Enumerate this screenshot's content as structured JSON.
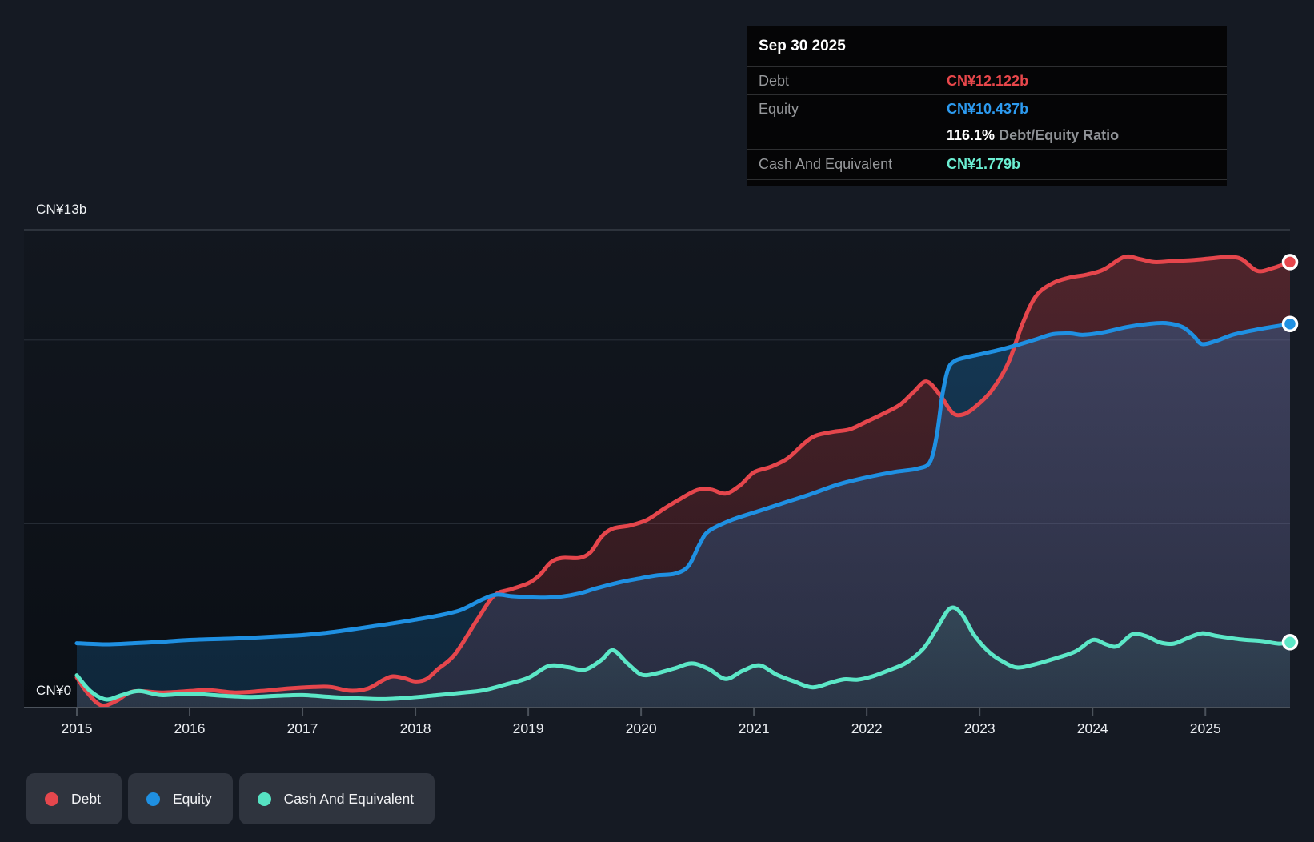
{
  "tooltip": {
    "date": "Sep 30 2025",
    "rows": {
      "debt": {
        "label": "Debt",
        "value": "CN¥12.122b"
      },
      "equity": {
        "label": "Equity",
        "value": "CN¥10.437b"
      },
      "ratio": {
        "value": "116.1%",
        "label": "Debt/Equity Ratio"
      },
      "cash": {
        "label": "Cash And Equivalent",
        "value": "CN¥1.779b"
      }
    }
  },
  "axis": {
    "y_max_label": "CN¥13b",
    "y_min_label": "CN¥0",
    "years": [
      "2015",
      "2016",
      "2017",
      "2018",
      "2019",
      "2020",
      "2021",
      "2022",
      "2023",
      "2024",
      "2025"
    ]
  },
  "legend": {
    "items": [
      {
        "id": "debt",
        "label": "Debt",
        "color": "#e5474d"
      },
      {
        "id": "equity",
        "label": "Equity",
        "color": "#1f90e2"
      },
      {
        "id": "cash",
        "label": "Cash And Equivalent",
        "color": "#56e2c2"
      }
    ]
  },
  "chart_data": {
    "type": "area",
    "x_unit": "decimal_year",
    "x_range": [
      2015,
      2025.75
    ],
    "ylim": [
      0,
      13
    ],
    "y_currency": "CN¥b",
    "y_gridlines_b": [
      5,
      10,
      13
    ],
    "grid": true,
    "legend_position": "bottom-left",
    "last_point_date": "Sep 30 2025",
    "series": [
      {
        "id": "debt",
        "name": "Debt",
        "color": "#e5464c",
        "end_value_b": 12.122,
        "end_label": "CN¥12.122b",
        "fill_opacity": [
          0.3,
          0.14
        ],
        "points": [
          [
            2015.0,
            0.82
          ],
          [
            2015.1,
            0.38
          ],
          [
            2015.22,
            0.06
          ],
          [
            2015.35,
            0.18
          ],
          [
            2015.5,
            0.44
          ],
          [
            2015.75,
            0.41
          ],
          [
            2016.0,
            0.45
          ],
          [
            2016.16,
            0.48
          ],
          [
            2016.4,
            0.41
          ],
          [
            2016.63,
            0.45
          ],
          [
            2016.87,
            0.52
          ],
          [
            2017.1,
            0.56
          ],
          [
            2017.25,
            0.56
          ],
          [
            2017.42,
            0.46
          ],
          [
            2017.58,
            0.52
          ],
          [
            2017.72,
            0.76
          ],
          [
            2017.8,
            0.85
          ],
          [
            2017.9,
            0.8
          ],
          [
            2018.0,
            0.71
          ],
          [
            2018.1,
            0.78
          ],
          [
            2018.2,
            1.05
          ],
          [
            2018.35,
            1.45
          ],
          [
            2018.55,
            2.4
          ],
          [
            2018.7,
            3.05
          ],
          [
            2018.85,
            3.22
          ],
          [
            2019.0,
            3.38
          ],
          [
            2019.1,
            3.6
          ],
          [
            2019.2,
            3.95
          ],
          [
            2019.3,
            4.07
          ],
          [
            2019.45,
            4.07
          ],
          [
            2019.55,
            4.22
          ],
          [
            2019.65,
            4.65
          ],
          [
            2019.75,
            4.87
          ],
          [
            2019.9,
            4.95
          ],
          [
            2020.05,
            5.1
          ],
          [
            2020.2,
            5.4
          ],
          [
            2020.35,
            5.68
          ],
          [
            2020.5,
            5.92
          ],
          [
            2020.62,
            5.93
          ],
          [
            2020.75,
            5.82
          ],
          [
            2020.88,
            6.05
          ],
          [
            2021.0,
            6.4
          ],
          [
            2021.15,
            6.55
          ],
          [
            2021.3,
            6.78
          ],
          [
            2021.45,
            7.2
          ],
          [
            2021.55,
            7.4
          ],
          [
            2021.7,
            7.5
          ],
          [
            2021.85,
            7.57
          ],
          [
            2022.0,
            7.78
          ],
          [
            2022.15,
            8.0
          ],
          [
            2022.3,
            8.25
          ],
          [
            2022.42,
            8.6
          ],
          [
            2022.53,
            8.87
          ],
          [
            2022.65,
            8.5
          ],
          [
            2022.76,
            8.02
          ],
          [
            2022.85,
            7.97
          ],
          [
            2022.95,
            8.15
          ],
          [
            2023.1,
            8.6
          ],
          [
            2023.25,
            9.35
          ],
          [
            2023.38,
            10.45
          ],
          [
            2023.5,
            11.2
          ],
          [
            2023.65,
            11.55
          ],
          [
            2023.8,
            11.7
          ],
          [
            2023.95,
            11.78
          ],
          [
            2024.1,
            11.92
          ],
          [
            2024.28,
            12.26
          ],
          [
            2024.42,
            12.2
          ],
          [
            2024.55,
            12.12
          ],
          [
            2024.72,
            12.15
          ],
          [
            2024.9,
            12.18
          ],
          [
            2025.05,
            12.22
          ],
          [
            2025.2,
            12.26
          ],
          [
            2025.32,
            12.2
          ],
          [
            2025.46,
            11.88
          ],
          [
            2025.6,
            11.96
          ],
          [
            2025.75,
            12.122
          ]
        ]
      },
      {
        "id": "equity",
        "name": "Equity",
        "color": "#1f90e2",
        "end_value_b": 10.437,
        "end_label": "CN¥10.437b",
        "fill_opacity": [
          0.3,
          0.18
        ],
        "points": [
          [
            2015.0,
            1.75
          ],
          [
            2015.25,
            1.72
          ],
          [
            2015.5,
            1.75
          ],
          [
            2015.75,
            1.79
          ],
          [
            2016.0,
            1.84
          ],
          [
            2016.3,
            1.87
          ],
          [
            2016.55,
            1.9
          ],
          [
            2016.8,
            1.94
          ],
          [
            2017.0,
            1.97
          ],
          [
            2017.2,
            2.03
          ],
          [
            2017.4,
            2.11
          ],
          [
            2017.6,
            2.2
          ],
          [
            2017.8,
            2.29
          ],
          [
            2018.0,
            2.39
          ],
          [
            2018.2,
            2.5
          ],
          [
            2018.4,
            2.65
          ],
          [
            2018.6,
            2.95
          ],
          [
            2018.72,
            3.07
          ],
          [
            2018.85,
            3.03
          ],
          [
            2019.0,
            3.0
          ],
          [
            2019.15,
            2.99
          ],
          [
            2019.3,
            3.02
          ],
          [
            2019.45,
            3.1
          ],
          [
            2019.6,
            3.24
          ],
          [
            2019.8,
            3.4
          ],
          [
            2020.0,
            3.52
          ],
          [
            2020.15,
            3.6
          ],
          [
            2020.3,
            3.64
          ],
          [
            2020.42,
            3.85
          ],
          [
            2020.52,
            4.45
          ],
          [
            2020.6,
            4.8
          ],
          [
            2020.8,
            5.1
          ],
          [
            2021.05,
            5.35
          ],
          [
            2021.3,
            5.6
          ],
          [
            2021.5,
            5.8
          ],
          [
            2021.75,
            6.07
          ],
          [
            2022.0,
            6.26
          ],
          [
            2022.25,
            6.41
          ],
          [
            2022.45,
            6.5
          ],
          [
            2022.56,
            6.68
          ],
          [
            2022.62,
            7.4
          ],
          [
            2022.67,
            8.5
          ],
          [
            2022.72,
            9.2
          ],
          [
            2022.78,
            9.43
          ],
          [
            2022.88,
            9.53
          ],
          [
            2023.0,
            9.61
          ],
          [
            2023.2,
            9.75
          ],
          [
            2023.35,
            9.88
          ],
          [
            2023.5,
            10.02
          ],
          [
            2023.65,
            10.16
          ],
          [
            2023.8,
            10.18
          ],
          [
            2023.92,
            10.14
          ],
          [
            2024.1,
            10.21
          ],
          [
            2024.3,
            10.35
          ],
          [
            2024.5,
            10.44
          ],
          [
            2024.65,
            10.46
          ],
          [
            2024.8,
            10.35
          ],
          [
            2024.9,
            10.1
          ],
          [
            2024.97,
            9.89
          ],
          [
            2025.1,
            9.98
          ],
          [
            2025.25,
            10.15
          ],
          [
            2025.45,
            10.28
          ],
          [
            2025.6,
            10.36
          ],
          [
            2025.75,
            10.437
          ]
        ]
      },
      {
        "id": "cash",
        "name": "Cash And Equivalent",
        "color": "#5ce7c7",
        "end_value_b": 1.779,
        "end_label": "CN¥1.779b",
        "fill_opacity": [
          0.34,
          0.05
        ],
        "points": [
          [
            2015.0,
            0.88
          ],
          [
            2015.12,
            0.45
          ],
          [
            2015.26,
            0.22
          ],
          [
            2015.4,
            0.34
          ],
          [
            2015.55,
            0.45
          ],
          [
            2015.75,
            0.34
          ],
          [
            2016.0,
            0.38
          ],
          [
            2016.3,
            0.32
          ],
          [
            2016.55,
            0.29
          ],
          [
            2016.78,
            0.32
          ],
          [
            2017.0,
            0.34
          ],
          [
            2017.25,
            0.29
          ],
          [
            2017.5,
            0.25
          ],
          [
            2017.72,
            0.23
          ],
          [
            2017.95,
            0.27
          ],
          [
            2018.2,
            0.34
          ],
          [
            2018.4,
            0.4
          ],
          [
            2018.6,
            0.47
          ],
          [
            2018.8,
            0.63
          ],
          [
            2019.0,
            0.81
          ],
          [
            2019.18,
            1.13
          ],
          [
            2019.35,
            1.1
          ],
          [
            2019.5,
            1.03
          ],
          [
            2019.65,
            1.3
          ],
          [
            2019.75,
            1.56
          ],
          [
            2019.88,
            1.2
          ],
          [
            2020.0,
            0.9
          ],
          [
            2020.12,
            0.92
          ],
          [
            2020.3,
            1.07
          ],
          [
            2020.45,
            1.2
          ],
          [
            2020.6,
            1.05
          ],
          [
            2020.75,
            0.78
          ],
          [
            2020.9,
            1.0
          ],
          [
            2021.05,
            1.15
          ],
          [
            2021.2,
            0.9
          ],
          [
            2021.35,
            0.72
          ],
          [
            2021.52,
            0.55
          ],
          [
            2021.68,
            0.68
          ],
          [
            2021.8,
            0.77
          ],
          [
            2021.92,
            0.76
          ],
          [
            2022.05,
            0.85
          ],
          [
            2022.2,
            1.02
          ],
          [
            2022.35,
            1.22
          ],
          [
            2022.5,
            1.6
          ],
          [
            2022.62,
            2.15
          ],
          [
            2022.74,
            2.7
          ],
          [
            2022.84,
            2.55
          ],
          [
            2022.95,
            1.98
          ],
          [
            2023.08,
            1.52
          ],
          [
            2023.2,
            1.26
          ],
          [
            2023.33,
            1.09
          ],
          [
            2023.48,
            1.17
          ],
          [
            2023.65,
            1.32
          ],
          [
            2023.85,
            1.53
          ],
          [
            2024.0,
            1.84
          ],
          [
            2024.12,
            1.72
          ],
          [
            2024.22,
            1.67
          ],
          [
            2024.35,
            1.99
          ],
          [
            2024.47,
            1.95
          ],
          [
            2024.6,
            1.77
          ],
          [
            2024.72,
            1.74
          ],
          [
            2024.85,
            1.9
          ],
          [
            2024.97,
            2.02
          ],
          [
            2025.1,
            1.95
          ],
          [
            2025.3,
            1.86
          ],
          [
            2025.5,
            1.81
          ],
          [
            2025.65,
            1.74
          ],
          [
            2025.75,
            1.779
          ]
        ]
      }
    ]
  }
}
